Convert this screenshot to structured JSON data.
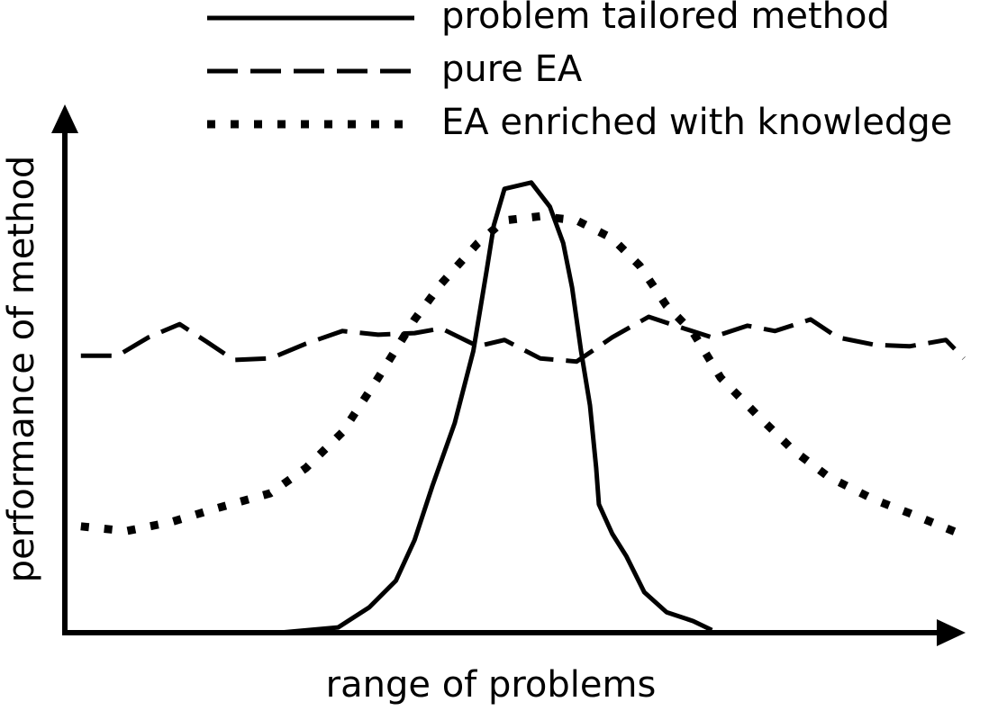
{
  "chart_data": {
    "type": "line",
    "xlabel": "range of problems",
    "ylabel": "performance of method",
    "xlim": [
      0,
      101
    ],
    "ylim": [
      0,
      100
    ],
    "legend": "top-right",
    "series": [
      {
        "name": "problem tailored method",
        "color": "#000000",
        "style": "solid",
        "x": [
          24.1,
          30.7,
          34.2,
          37.2,
          39.3,
          41.3,
          43.8,
          45.9,
          47.4,
          48.2,
          49.4,
          52.4,
          54.5,
          56.0,
          57.0,
          58.0,
          59.0,
          59.7,
          60.0,
          61.5,
          63.1,
          65.1,
          67.6,
          70.6,
          72.7
        ],
        "values": [
          0,
          1.0,
          4.8,
          9.9,
          17.6,
          27.9,
          39.8,
          53.5,
          68.9,
          77.4,
          84.3,
          85.5,
          80.9,
          74.0,
          65.5,
          53.5,
          43.2,
          31.3,
          24.4,
          18.8,
          14.5,
          7.7,
          3.9,
          2.2,
          0.5
        ]
      },
      {
        "name": "pure EA",
        "color": "#000000",
        "style": "dashed",
        "x": [
          1.8,
          5.9,
          9.4,
          12.9,
          16.0,
          19.0,
          23.1,
          27.1,
          31.2,
          35.2,
          39.3,
          42.3,
          46.4,
          49.4,
          53.4,
          57.5,
          61.5,
          65.6,
          68.6,
          72.7,
          76.7,
          79.8,
          83.8,
          86.8,
          90.9,
          94.9,
          99.0,
          101
        ],
        "values": [
          52.6,
          52.6,
          56.1,
          58.6,
          55.2,
          51.8,
          52.1,
          54.9,
          57.3,
          56.6,
          56.9,
          57.8,
          54.4,
          55.6,
          52.1,
          51.5,
          56.1,
          60.0,
          58.3,
          56.1,
          58.3,
          57.3,
          59.5,
          56.1,
          54.7,
          54.4,
          55.6,
          52.1
        ]
      },
      {
        "name": "EA enriched with knowledge",
        "color": "#000000",
        "style": "dotted",
        "x": [
          1.8,
          6.9,
          11.9,
          17.0,
          23.1,
          27.1,
          31.2,
          35.2,
          39.3,
          42.3,
          46.4,
          49.4,
          53.4,
          57.5,
          61.5,
          64.6,
          67.6,
          70.6,
          73.7,
          77.7,
          81.8,
          85.8,
          90.9,
          94.9,
          101
        ],
        "values": [
          20.2,
          19.3,
          21.0,
          23.6,
          26.5,
          31.3,
          38.1,
          48.4,
          59.5,
          66.3,
          74.0,
          78.3,
          79.1,
          78.3,
          74.9,
          69.7,
          62.1,
          57.0,
          48.4,
          41.5,
          34.7,
          29.6,
          25.3,
          22.7,
          18.5
        ]
      }
    ]
  }
}
